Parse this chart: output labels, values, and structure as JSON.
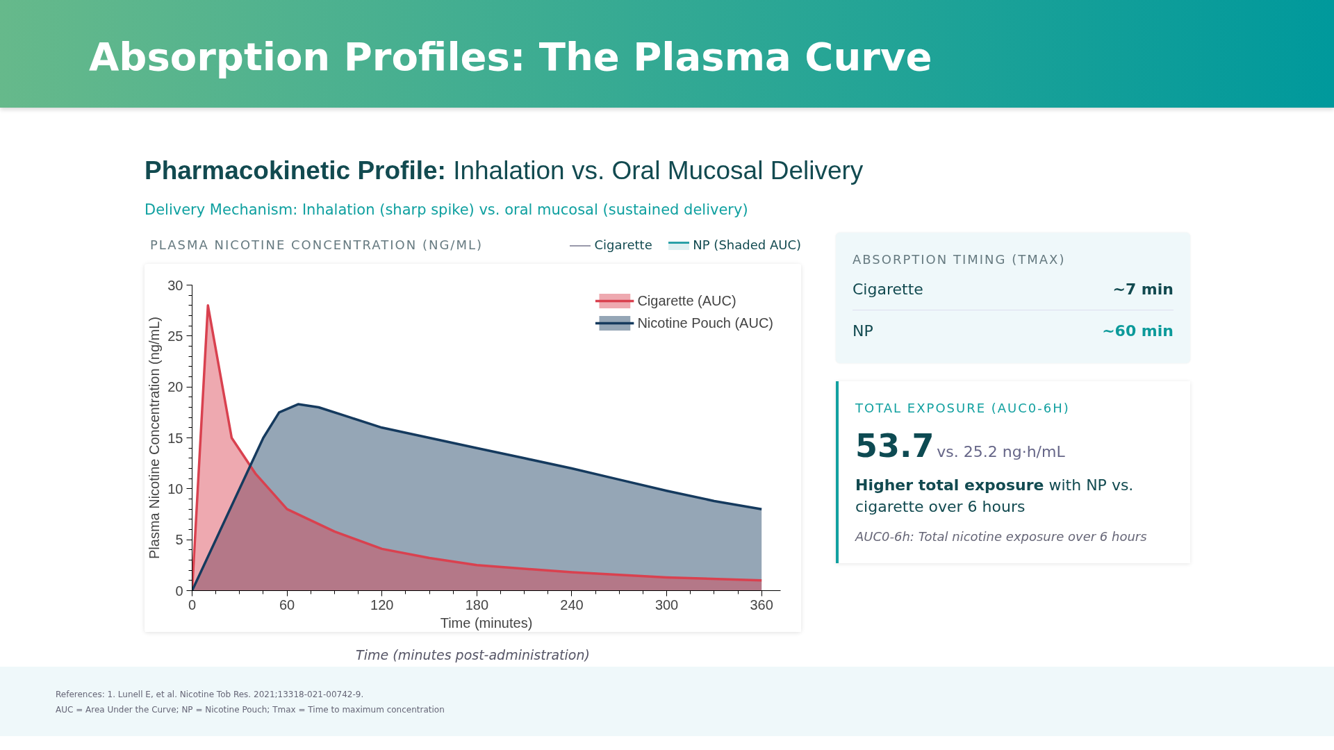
{
  "chart_data": {
    "type": "area",
    "title": "Absorption Profiles: The Plasma Curve",
    "subtitle": "Pharmacokinetic Profile: Inhalation vs. Oral Mucosal Delivery",
    "xlabel": "Time (minutes)",
    "ylabel": "Plasma Nicotine Concentration (ng/mL)",
    "series": [
      {
        "name": "Cigarette (AUC)",
        "color": "#d9414f",
        "x": [
          0,
          10,
          25,
          40,
          60,
          90,
          120,
          150,
          180,
          240,
          300,
          360
        ],
        "values": [
          0,
          28,
          15,
          11.5,
          8,
          5.8,
          4.1,
          3.2,
          2.5,
          1.8,
          1.3,
          1.0
        ]
      },
      {
        "name": "Nicotine Pouch (AUC)",
        "color": "#153a5e",
        "x": [
          0,
          15,
          30,
          45,
          55,
          67,
          80,
          100,
          120,
          150,
          180,
          210,
          240,
          270,
          300,
          330,
          360
        ],
        "values": [
          0,
          5,
          10,
          15,
          17.5,
          18.3,
          18.0,
          17.0,
          16.0,
          15.0,
          14.0,
          13.0,
          12.0,
          10.9,
          9.8,
          8.8,
          8.0
        ]
      }
    ],
    "xlim": [
      0,
      372
    ],
    "ylim": [
      0,
      30
    ],
    "xticks": [
      0,
      60,
      120,
      180,
      240,
      300,
      360
    ],
    "yticks": [
      0,
      5,
      10,
      15,
      20,
      25,
      30
    ],
    "grid": false,
    "legend": "top right",
    "annotations": [
      "Delivery Mechanism: Inhalation (sharp spike) vs. oral mucosal (sustained delivery)",
      "PLASMA NICOTINE CONCENTRATION (NG/ML)",
      "Cigarette",
      "NP (Shaded AUC)",
      "Time (minutes post-administration)",
      "ABSORPTION TIMING (TMAX)",
      "Cigarette",
      "~7 min",
      "NP",
      "~60 min",
      "TOTAL EXPOSURE (AUC0-6H)",
      "53.7",
      "vs. 25.2 ng·h/mL",
      "Higher total exposure",
      "with NP vs. cigarette over 6 hours",
      "AUC0-6h: Total nicotine exposure over 6 hours",
      "References: 1. Lunell E, et al. Nicotine Tob Res. 2021;13318-021-00742-9.",
      "AUC = Area Under the Curve; NP = Nicotine Pouch; Tmax = Time to maximum concentration"
    ]
  }
}
